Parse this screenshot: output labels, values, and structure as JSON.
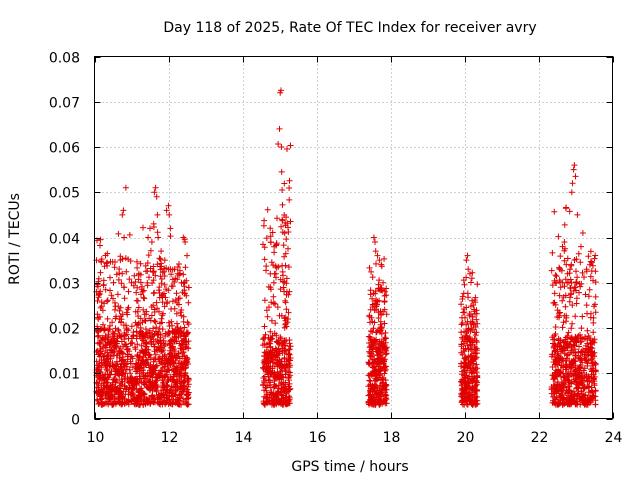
{
  "chart_data": {
    "type": "scatter",
    "title": "Day 118 of 2025, Rate Of TEC Index for receiver avry",
    "xlabel": "GPS time / hours",
    "ylabel": "ROTI / TECUs",
    "xlim": [
      10,
      24
    ],
    "ylim": [
      0,
      0.08
    ],
    "xticks": [
      10,
      12,
      14,
      16,
      18,
      20,
      22,
      24
    ],
    "xtick_labels": [
      "10",
      "12",
      "14",
      "16",
      "18",
      "20",
      "22",
      "24"
    ],
    "yticks": [
      0,
      0.01,
      0.02,
      0.03,
      0.04,
      0.05,
      0.06,
      0.07,
      0.08
    ],
    "ytick_labels": [
      "0",
      "0.01",
      "0.02",
      "0.03",
      "0.04",
      "0.05",
      "0.06",
      "0.07",
      "0.08"
    ],
    "grid": true,
    "marker": "+",
    "color": "#e00000",
    "series": [
      {
        "name": "ROTI",
        "clusters": [
          {
            "x_range": [
              10.05,
              12.55
            ],
            "count": 1400,
            "base_max": 0.02,
            "spike_max": 0.051
          },
          {
            "x_range": [
              14.55,
              15.3
            ],
            "count": 450,
            "base_max": 0.018,
            "spike_max": 0.072
          },
          {
            "x_range": [
              17.4,
              17.9
            ],
            "count": 350,
            "base_max": 0.018,
            "spike_max": 0.04
          },
          {
            "x_range": [
              19.9,
              20.35
            ],
            "count": 300,
            "base_max": 0.018,
            "spike_max": 0.036
          },
          {
            "x_range": [
              22.35,
              23.55
            ],
            "count": 650,
            "base_max": 0.018,
            "spike_max": 0.056
          }
        ],
        "points": [
          [
            10.05,
            0.028
          ],
          [
            10.08,
            0.026
          ],
          [
            10.1,
            0.022
          ],
          [
            10.3,
            0.018
          ],
          [
            10.55,
            0.024
          ],
          [
            10.7,
            0.035
          ],
          [
            10.75,
            0.045
          ],
          [
            10.78,
            0.046
          ],
          [
            10.8,
            0.04
          ],
          [
            10.85,
            0.051
          ],
          [
            11.0,
            0.03
          ],
          [
            11.2,
            0.032
          ],
          [
            11.3,
            0.028
          ],
          [
            11.45,
            0.04
          ],
          [
            11.5,
            0.042
          ],
          [
            11.55,
            0.039
          ],
          [
            11.6,
            0.043
          ],
          [
            11.62,
            0.05
          ],
          [
            11.65,
            0.051
          ],
          [
            11.68,
            0.049
          ],
          [
            11.7,
            0.045
          ],
          [
            11.72,
            0.04
          ],
          [
            11.8,
            0.037
          ],
          [
            11.9,
            0.035
          ],
          [
            11.95,
            0.046
          ],
          [
            12.0,
            0.047
          ],
          [
            12.02,
            0.045
          ],
          [
            12.05,
            0.042
          ],
          [
            12.25,
            0.032
          ],
          [
            12.4,
            0.04
          ],
          [
            12.45,
            0.039
          ],
          [
            12.5,
            0.036
          ],
          [
            14.75,
            0.032
          ],
          [
            14.85,
            0.03
          ],
          [
            14.9,
            0.032
          ],
          [
            15.0,
            0.064
          ],
          [
            15.02,
            0.072
          ],
          [
            15.04,
            0.0725
          ],
          [
            15.05,
            0.06
          ],
          [
            15.06,
            0.0545
          ],
          [
            15.07,
            0.0505
          ],
          [
            15.08,
            0.0472
          ],
          [
            15.09,
            0.0412
          ],
          [
            15.15,
            0.026
          ],
          [
            15.2,
            0.028
          ],
          [
            17.55,
            0.04
          ],
          [
            17.58,
            0.039
          ],
          [
            17.6,
            0.037
          ],
          [
            17.65,
            0.036
          ],
          [
            17.7,
            0.035
          ],
          [
            17.75,
            0.034
          ],
          [
            17.8,
            0.03
          ],
          [
            17.85,
            0.028
          ],
          [
            20.05,
            0.035
          ],
          [
            20.08,
            0.036
          ],
          [
            20.1,
            0.033
          ],
          [
            20.15,
            0.032
          ],
          [
            20.2,
            0.031
          ],
          [
            22.6,
            0.029
          ],
          [
            22.65,
            0.038
          ],
          [
            22.7,
            0.039
          ],
          [
            22.75,
            0.034
          ],
          [
            22.85,
            0.033
          ],
          [
            22.9,
            0.05
          ],
          [
            22.92,
            0.052
          ],
          [
            22.95,
            0.055
          ],
          [
            22.97,
            0.056
          ],
          [
            23.0,
            0.0535
          ],
          [
            23.05,
            0.045
          ],
          [
            23.15,
            0.038
          ],
          [
            23.2,
            0.041
          ],
          [
            23.3,
            0.033
          ]
        ]
      }
    ]
  }
}
